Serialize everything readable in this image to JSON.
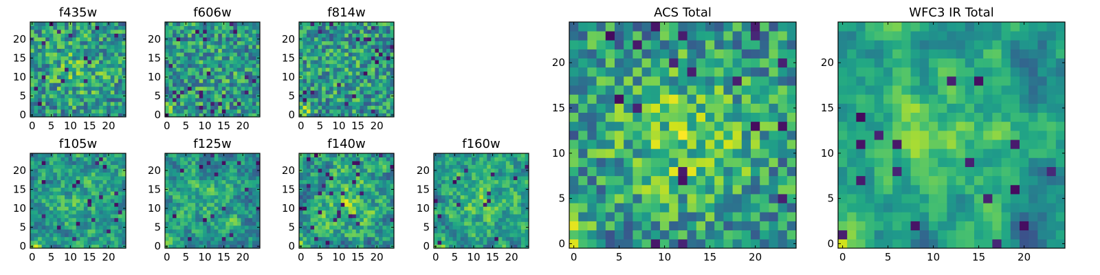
{
  "figure": {
    "colormap": "viridis",
    "background": "#ffffff"
  },
  "chart_data": [
    {
      "type": "heatmap",
      "title": "f435w",
      "grid": [
        25,
        25
      ],
      "seed": 11,
      "smooth": 0,
      "center_boost": 0.15,
      "corner_boost": 0.05,
      "xticks": [
        "0",
        "5",
        "10",
        "15",
        "20"
      ],
      "yticks": [
        "0",
        "5",
        "10",
        "15",
        "20"
      ],
      "xlim": [
        -0.5,
        24.5
      ],
      "ylim": [
        -0.5,
        24.5
      ]
    },
    {
      "type": "heatmap",
      "title": "f606w",
      "grid": [
        25,
        25
      ],
      "seed": 23,
      "smooth": 0,
      "center_boost": 0.05,
      "corner_boost": 0.3,
      "xticks": [
        "0",
        "5",
        "10",
        "15",
        "20"
      ],
      "yticks": [
        "0",
        "5",
        "10",
        "15",
        "20"
      ],
      "xlim": [
        -0.5,
        24.5
      ],
      "ylim": [
        -0.5,
        24.5
      ]
    },
    {
      "type": "heatmap",
      "title": "f814w",
      "grid": [
        25,
        25
      ],
      "seed": 37,
      "smooth": 0,
      "center_boost": 0.05,
      "corner_boost": 0.35,
      "xticks": [
        "0",
        "5",
        "10",
        "15",
        "20"
      ],
      "yticks": [
        "0",
        "5",
        "10",
        "15",
        "20"
      ],
      "xlim": [
        -0.5,
        24.5
      ],
      "ylim": [
        -0.5,
        24.5
      ]
    },
    {
      "type": "heatmap",
      "title": "f105w",
      "grid": [
        25,
        25
      ],
      "seed": 41,
      "smooth": 1,
      "center_boost": 0.15,
      "corner_boost": 0.35,
      "xticks": [
        "0",
        "5",
        "10",
        "15",
        "20"
      ],
      "yticks": [
        "0",
        "5",
        "10",
        "15",
        "20"
      ],
      "xlim": [
        -0.5,
        24.5
      ],
      "ylim": [
        -0.5,
        24.5
      ]
    },
    {
      "type": "heatmap",
      "title": "f125w",
      "grid": [
        25,
        25
      ],
      "seed": 53,
      "smooth": 1,
      "center_boost": 0.1,
      "corner_boost": 0.35,
      "xticks": [
        "0",
        "5",
        "10",
        "15",
        "20"
      ],
      "yticks": [
        "0",
        "5",
        "10",
        "15",
        "20"
      ],
      "xlim": [
        -0.5,
        24.5
      ],
      "ylim": [
        -0.5,
        24.5
      ]
    },
    {
      "type": "heatmap",
      "title": "f140w",
      "grid": [
        25,
        25
      ],
      "seed": 67,
      "smooth": 1,
      "center_boost": 0.2,
      "corner_boost": 0.35,
      "xticks": [
        "0",
        "5",
        "10",
        "15",
        "20"
      ],
      "yticks": [
        "0",
        "5",
        "10",
        "15",
        "20"
      ],
      "xlim": [
        -0.5,
        24.5
      ],
      "ylim": [
        -0.5,
        24.5
      ]
    },
    {
      "type": "heatmap",
      "title": "f160w",
      "grid": [
        25,
        25
      ],
      "seed": 79,
      "smooth": 1,
      "center_boost": 0.2,
      "corner_boost": 0.4,
      "xticks": [
        "0",
        "5",
        "10",
        "15",
        "20"
      ],
      "yticks": [
        "0",
        "5",
        "10",
        "15",
        "20"
      ],
      "xlim": [
        -0.5,
        24.5
      ],
      "ylim": [
        -0.5,
        24.5
      ]
    },
    {
      "type": "heatmap",
      "title": "ACS Total",
      "grid": [
        25,
        25
      ],
      "seed": 97,
      "smooth": 0,
      "center_boost": 0.25,
      "corner_boost": 0.55,
      "xticks": [
        "0",
        "5",
        "10",
        "15",
        "20"
      ],
      "yticks": [
        "0",
        "5",
        "10",
        "15",
        "20"
      ],
      "xlim": [
        -0.5,
        24.5
      ],
      "ylim": [
        -0.5,
        24.5
      ]
    },
    {
      "type": "heatmap",
      "title": "WFC3 IR Total",
      "grid": [
        25,
        25
      ],
      "seed": 131,
      "smooth": 2,
      "center_boost": 0.25,
      "corner_boost": 0.6,
      "xticks": [
        "0",
        "5",
        "10",
        "15",
        "20"
      ],
      "yticks": [
        "0",
        "5",
        "10",
        "15",
        "20"
      ],
      "xlim": [
        -0.5,
        24.5
      ],
      "ylim": [
        -0.5,
        24.5
      ]
    }
  ]
}
